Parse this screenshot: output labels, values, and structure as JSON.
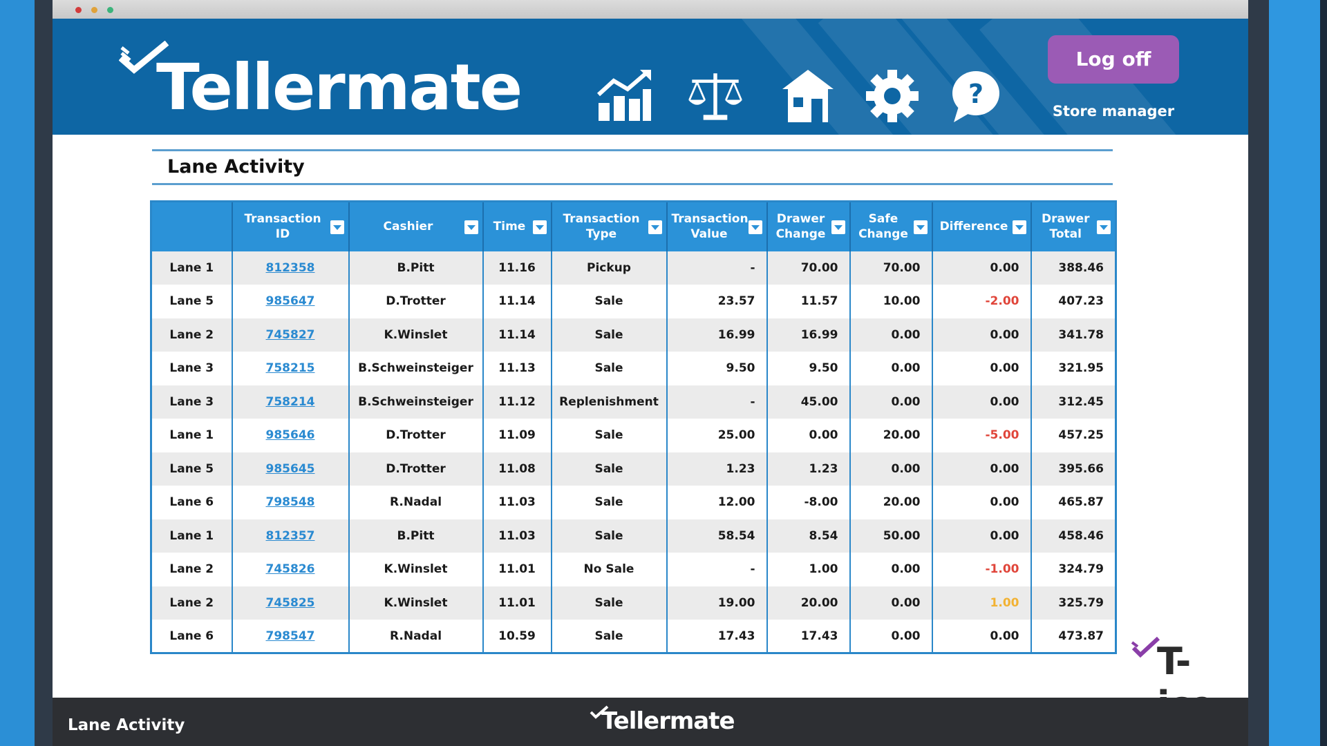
{
  "app": {
    "name": "Tellermate"
  },
  "header": {
    "logoff_label": "Log off",
    "role": "Store manager",
    "nav_icons": [
      "reports-chart-icon",
      "balance-scale-icon",
      "store-building-icon",
      "settings-gear-icon",
      "help-question-icon"
    ]
  },
  "page": {
    "title": "Lane Activity"
  },
  "table": {
    "columns": [
      "",
      "Transaction ID",
      "Cashier",
      "Time",
      "Transaction Type",
      "Transaction Value",
      "Drawer Change",
      "Safe Change",
      "Difference",
      "Drawer Total"
    ],
    "rows": [
      {
        "lane": "Lane 1",
        "id": "812358",
        "cashier": "B.Pitt",
        "time": "11.16",
        "type": "Pickup",
        "value": "-",
        "drawer_change": "70.00",
        "safe_change": "70.00",
        "difference": "0.00",
        "drawer_total": "388.46"
      },
      {
        "lane": "Lane 5",
        "id": "985647",
        "cashier": "D.Trotter",
        "time": "11.14",
        "type": "Sale",
        "value": "23.57",
        "drawer_change": "11.57",
        "safe_change": "10.00",
        "difference": "-2.00",
        "drawer_total": "407.23"
      },
      {
        "lane": "Lane 2",
        "id": "745827",
        "cashier": "K.Winslet",
        "time": "11.14",
        "type": "Sale",
        "value": "16.99",
        "drawer_change": "16.99",
        "safe_change": "0.00",
        "difference": "0.00",
        "drawer_total": "341.78"
      },
      {
        "lane": "Lane 3",
        "id": "758215",
        "cashier": "B.Schweinsteiger",
        "time": "11.13",
        "type": "Sale",
        "value": "9.50",
        "drawer_change": "9.50",
        "safe_change": "0.00",
        "difference": "0.00",
        "drawer_total": "321.95"
      },
      {
        "lane": "Lane 3",
        "id": "758214",
        "cashier": "B.Schweinsteiger",
        "time": "11.12",
        "type": "Replenishment",
        "value": "-",
        "drawer_change": "45.00",
        "safe_change": "0.00",
        "difference": "0.00",
        "drawer_total": "312.45"
      },
      {
        "lane": "Lane 1",
        "id": "985646",
        "cashier": "D.Trotter",
        "time": "11.09",
        "type": "Sale",
        "value": "25.00",
        "drawer_change": "0.00",
        "safe_change": "20.00",
        "difference": "-5.00",
        "drawer_total": "457.25"
      },
      {
        "lane": "Lane 5",
        "id": "985645",
        "cashier": "D.Trotter",
        "time": "11.08",
        "type": "Sale",
        "value": "1.23",
        "drawer_change": "1.23",
        "safe_change": "0.00",
        "difference": "0.00",
        "drawer_total": "395.66"
      },
      {
        "lane": "Lane 6",
        "id": "798548",
        "cashier": "R.Nadal",
        "time": "11.03",
        "type": "Sale",
        "value": "12.00",
        "drawer_change": "-8.00",
        "safe_change": "20.00",
        "difference": "0.00",
        "drawer_total": "465.87"
      },
      {
        "lane": "Lane 1",
        "id": "812357",
        "cashier": "B.Pitt",
        "time": "11.03",
        "type": "Sale",
        "value": "58.54",
        "drawer_change": "8.54",
        "safe_change": "50.00",
        "difference": "0.00",
        "drawer_total": "458.46"
      },
      {
        "lane": "Lane 2",
        "id": "745826",
        "cashier": "K.Winslet",
        "time": "11.01",
        "type": "No Sale",
        "value": "-",
        "drawer_change": "1.00",
        "safe_change": "0.00",
        "difference": "-1.00",
        "drawer_total": "324.79"
      },
      {
        "lane": "Lane 2",
        "id": "745825",
        "cashier": "K.Winslet",
        "time": "11.01",
        "type": "Sale",
        "value": "19.00",
        "drawer_change": "20.00",
        "safe_change": "0.00",
        "difference": "1.00",
        "drawer_total": "325.79"
      },
      {
        "lane": "Lane 6",
        "id": "798547",
        "cashier": "R.Nadal",
        "time": "10.59",
        "type": "Sale",
        "value": "17.43",
        "drawer_change": "17.43",
        "safe_change": "0.00",
        "difference": "0.00",
        "drawer_total": "473.87"
      }
    ]
  },
  "footer": {
    "left_label": "Lane Activity",
    "brand": "Tellermate"
  },
  "watermark": {
    "brand": "T-ice"
  },
  "colors": {
    "header_blue": "#0e66a4",
    "table_header_blue": "#2b92d8",
    "logoff_purple": "#9b5bb5",
    "negative_red": "#e0453a",
    "warning_amber": "#f2b233",
    "link_blue": "#2a8ad1"
  }
}
